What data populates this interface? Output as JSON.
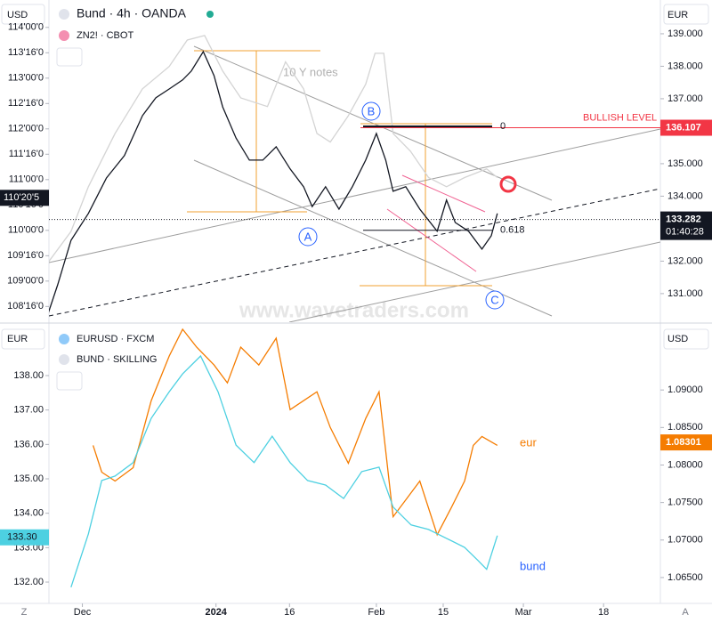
{
  "top_panel": {
    "currency_left": "USD",
    "currency_right": "EUR",
    "title": "Bund · 4h · OANDA",
    "compare_label": "ZN2! · CBOT",
    "annotation": "10 Y notes",
    "wave_labels": [
      "A",
      "B",
      "C"
    ],
    "watermark": "www.wavetraders.com",
    "ylim": [
      130.12,
      140.04
    ],
    "yticks": [
      {
        "value": 131,
        "label": "131.000"
      },
      {
        "value": 132,
        "label": "132.000"
      },
      {
        "value": 133,
        "label": "133.000"
      },
      {
        "value": 134,
        "label": "134.000"
      },
      {
        "value": 135,
        "label": "135.000"
      },
      {
        "value": 136,
        "label": "136.000"
      },
      {
        "value": 137,
        "label": "137.000"
      },
      {
        "value": 138,
        "label": "138.000"
      },
      {
        "value": 139,
        "label": "139.000"
      }
    ],
    "ylim_left": [
      108.19,
      114.54
    ],
    "yticks_left": [
      {
        "value": 108.5,
        "label": "108'16'0"
      },
      {
        "value": 109,
        "label": "109'00'0"
      },
      {
        "value": 109.5,
        "label": "109'16'0"
      },
      {
        "value": 110,
        "label": "110'00'0"
      },
      {
        "value": 110.5,
        "label": "110'16'0"
      },
      {
        "value": 111,
        "label": "111'00'0"
      },
      {
        "value": 111.5,
        "label": "111'16'0"
      },
      {
        "value": 112,
        "label": "112'00'0"
      },
      {
        "value": 112.5,
        "label": "112'16'0"
      },
      {
        "value": 113,
        "label": "113'00'0"
      },
      {
        "value": 113.5,
        "label": "113'16'0"
      },
      {
        "value": 114,
        "label": "114'00'0"
      }
    ],
    "left_last_price": {
      "value": 110.640625,
      "label": "110'20'5"
    },
    "last_price": 133.282,
    "countdown": "01:40:28",
    "bullish_level": {
      "value": 136.107,
      "label": "BULLISH LEVEL"
    },
    "fib": [
      {
        "level": 0,
        "price": 136.15
      },
      {
        "level": 0.618,
        "price": 132.95
      }
    ],
    "series": [
      {
        "color": "#d4d4d4",
        "axis": "left",
        "x": [
          -5.1,
          -1.7,
          0.9,
          4.9,
          9.0,
          13.0,
          15.7,
          18.3,
          21.0,
          23.7,
          27.7,
          30.4,
          33.1,
          35.1,
          37.1,
          39.8,
          42.4,
          43.8,
          45.1,
          46.5,
          49.1,
          51.8,
          54.5,
          57.2,
          60.5,
          62.1
        ],
        "values": [
          109.37,
          109.98,
          110.86,
          111.91,
          112.79,
          113.23,
          113.75,
          113.84,
          113.14,
          112.61,
          112.44,
          113.32,
          112.79,
          111.91,
          111.74,
          112.26,
          112.88,
          113.49,
          113.49,
          111.91,
          111.56,
          111.04,
          110.86,
          111.04,
          111.21,
          111.04
        ]
      },
      {
        "color": "#131722",
        "x": [
          -5.1,
          -3.7,
          -1.7,
          0.9,
          3.6,
          6.3,
          9.0,
          11.0,
          13.0,
          15.0,
          16.3,
          18.1,
          19.7,
          21.0,
          23.0,
          25.0,
          27.0,
          29.0,
          31.1,
          33.1,
          34.4,
          36.4,
          38.4,
          40.4,
          42.4,
          44.0,
          45.4,
          46.5,
          48.4,
          50.5,
          53.1,
          54.5,
          55.8,
          57.8,
          59.8,
          61.2,
          62.1
        ],
        "values": [
          130.4,
          131.27,
          132.64,
          133.47,
          134.56,
          135.25,
          136.48,
          137.03,
          137.3,
          137.58,
          137.85,
          138.45,
          137.71,
          136.75,
          135.79,
          135.11,
          135.11,
          135.52,
          134.84,
          134.29,
          133.68,
          134.29,
          133.6,
          134.29,
          135.11,
          135.93,
          135.11,
          134.15,
          134.29,
          133.6,
          132.92,
          133.88,
          133.19,
          132.92,
          132.37,
          132.78,
          133.47
        ]
      }
    ]
  },
  "bottom_panel": {
    "currency_left": "EUR",
    "currency_right": "USD",
    "legend": [
      "EURUSD · FXCM",
      "BUND · SKILLING"
    ],
    "ylim": [
      1.06155,
      1.0988
    ],
    "yticks": [
      {
        "value": 1.065,
        "label": "1.06500"
      },
      {
        "value": 1.07,
        "label": "1.07000"
      },
      {
        "value": 1.075,
        "label": "1.07500"
      },
      {
        "value": 1.08,
        "label": "1.08000"
      },
      {
        "value": 1.085,
        "label": "1.08500"
      },
      {
        "value": 1.09,
        "label": "1.09000"
      }
    ],
    "ylim_left": [
      131.38,
      139.5
    ],
    "yticks_left": [
      {
        "value": 132,
        "label": "132.00"
      },
      {
        "value": 133,
        "label": "133.00"
      },
      {
        "value": 134,
        "label": "134.00"
      },
      {
        "value": 135,
        "label": "135.00"
      },
      {
        "value": 136,
        "label": "136.00"
      },
      {
        "value": 137,
        "label": "137.00"
      },
      {
        "value": 138,
        "label": "138.00"
      }
    ],
    "last_price_right": 1.08301,
    "last_price_left": {
      "value": 133.3,
      "label": "133.30"
    },
    "series": [
      {
        "name": "eur",
        "color": "#f57c00",
        "x": [
          1.6,
          2.9,
          4.9,
          7.6,
          10.3,
          13.0,
          15.0,
          17.1,
          19.7,
          21.7,
          23.7,
          26.4,
          29.0,
          31.1,
          33.1,
          35.1,
          37.1,
          39.8,
          42.4,
          44.4,
          46.5,
          48.5,
          50.5,
          53.1,
          55.2,
          57.2,
          58.5,
          59.8,
          62.1
        ],
        "values": [
          1.08262,
          1.07905,
          1.07786,
          1.07964,
          1.08857,
          1.09452,
          1.0981,
          1.09571,
          1.09333,
          1.09095,
          1.09571,
          1.09333,
          1.0969,
          1.08738,
          1.08857,
          1.08976,
          1.085,
          1.08024,
          1.0862,
          1.08976,
          1.0731,
          1.07548,
          1.07786,
          1.07071,
          1.07429,
          1.07786,
          1.08262,
          1.08381,
          1.08262
        ]
      },
      {
        "name": "bund",
        "color": "#4dd0e1",
        "axis": "left",
        "x": [
          -1.7,
          0.9,
          2.9,
          4.9,
          7.6,
          10.3,
          13.0,
          15.0,
          17.7,
          20.3,
          23.0,
          25.7,
          28.4,
          31.1,
          33.7,
          36.4,
          39.1,
          41.8,
          44.4,
          46.5,
          49.2,
          51.8,
          54.5,
          57.2,
          59.2,
          60.5,
          62.1
        ],
        "values": [
          131.85,
          133.4,
          134.95,
          135.08,
          135.47,
          136.76,
          137.53,
          138.05,
          138.57,
          137.53,
          135.98,
          135.47,
          136.24,
          135.47,
          134.95,
          134.82,
          134.43,
          135.21,
          135.34,
          134.18,
          133.66,
          133.53,
          133.27,
          133.01,
          132.63,
          132.37,
          133.35
        ]
      }
    ]
  },
  "x_axis": {
    "xlim": [
      -5,
      86.5
    ],
    "xticks": [
      {
        "value": 0,
        "label": "Dec"
      },
      {
        "value": 20,
        "label": "2024"
      },
      {
        "value": 31,
        "label": "16"
      },
      {
        "value": 44,
        "label": "Feb"
      },
      {
        "value": 54,
        "label": "15"
      },
      {
        "value": 66,
        "label": "Mar"
      },
      {
        "value": 78,
        "label": "18"
      }
    ],
    "nav_left": "Z",
    "nav_right": "A"
  }
}
